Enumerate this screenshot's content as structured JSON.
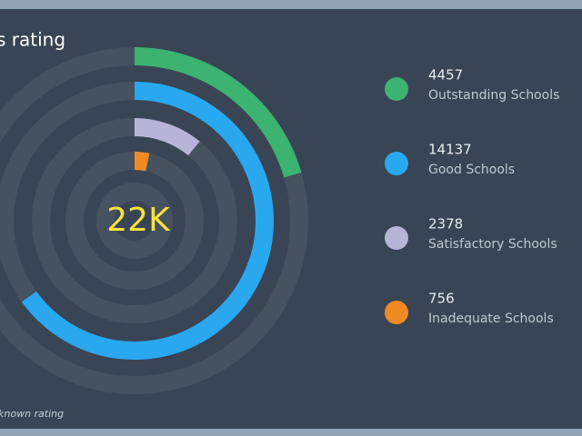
{
  "chart_data": {
    "type": "radial-bar",
    "title": "s rating",
    "center_label": "22K",
    "footnote": "known rating",
    "categories": [
      "Outstanding Schools",
      "Good Schools",
      "Satisfactory Schools",
      "Inadequate Schools"
    ],
    "values": [
      4457,
      14137,
      2378,
      756
    ],
    "colors": [
      "#3cb371",
      "#29a8f0",
      "#b8b4d8",
      "#f08a24"
    ]
  }
}
